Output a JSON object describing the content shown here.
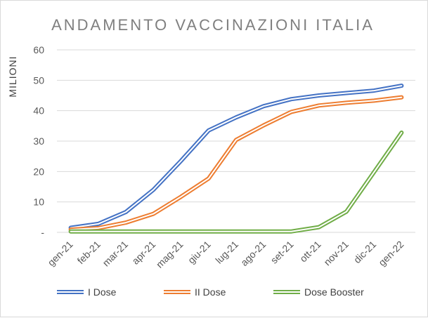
{
  "chart_data": {
    "type": "line",
    "title": "ANDAMENTO VACCINAZIONI ITALIA",
    "xlabel": "",
    "ylabel": "MILIONI",
    "categories": [
      "gen-21",
      "feb-21",
      "mar-21",
      "apr-21",
      "mag-21",
      "giu-21",
      "lug-21",
      "ago-21",
      "set-21",
      "ott-21",
      "nov-21",
      "dic-21",
      "gen-22"
    ],
    "ylim": [
      0,
      60
    ],
    "yticks": [
      0,
      10,
      20,
      30,
      40,
      50,
      60
    ],
    "ytick_labels": [
      "-",
      "10",
      "20",
      "30",
      "40",
      "50",
      "60"
    ],
    "grid": "horizontal",
    "legend_position": "bottom",
    "series": [
      {
        "name": "I Dose",
        "color": "#4472c4",
        "values": [
          1.5,
          2.8,
          6.7,
          14.0,
          23.5,
          33.5,
          37.8,
          41.5,
          43.8,
          45.0,
          45.8,
          46.6,
          48.2
        ]
      },
      {
        "name": "II Dose",
        "color": "#ed7d31",
        "values": [
          0.9,
          1.4,
          3.2,
          6.1,
          11.7,
          17.7,
          30.4,
          35.2,
          39.6,
          41.7,
          42.6,
          43.3,
          44.4
        ]
      },
      {
        "name": "Dose Booster",
        "color": "#70ad47",
        "values": [
          0.3,
          0.3,
          0.3,
          0.3,
          0.3,
          0.3,
          0.3,
          0.3,
          0.3,
          1.7,
          6.8,
          19.8,
          32.8
        ]
      }
    ]
  }
}
